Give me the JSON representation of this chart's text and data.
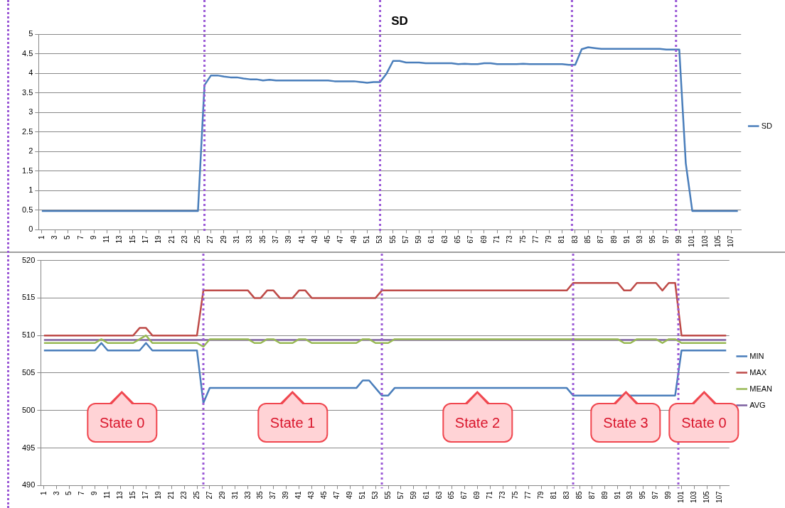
{
  "chart_data": [
    {
      "type": "line",
      "title": "SD",
      "x": [
        1,
        2,
        3,
        4,
        5,
        6,
        7,
        8,
        9,
        10,
        11,
        12,
        13,
        14,
        15,
        16,
        17,
        18,
        19,
        20,
        21,
        22,
        23,
        24,
        25,
        26,
        27,
        28,
        29,
        30,
        31,
        32,
        33,
        34,
        35,
        36,
        37,
        38,
        39,
        40,
        41,
        42,
        43,
        44,
        45,
        46,
        47,
        48,
        49,
        50,
        51,
        52,
        53,
        54,
        55,
        56,
        57,
        58,
        59,
        60,
        61,
        62,
        63,
        64,
        65,
        66,
        67,
        68,
        69,
        70,
        71,
        72,
        73,
        74,
        75,
        76,
        77,
        78,
        79,
        80,
        81,
        82,
        83,
        84,
        85,
        86,
        87,
        88,
        89,
        90,
        91,
        92,
        93,
        94,
        95,
        96,
        97,
        98,
        99,
        100,
        101,
        102,
        103,
        104,
        105,
        106,
        107,
        108
      ],
      "series": [
        {
          "name": "SD",
          "color": "#4a7ebb",
          "values": [
            0.48,
            0.48,
            0.48,
            0.48,
            0.48,
            0.48,
            0.48,
            0.48,
            0.48,
            0.48,
            0.48,
            0.48,
            0.48,
            0.48,
            0.48,
            0.48,
            0.48,
            0.48,
            0.48,
            0.48,
            0.48,
            0.48,
            0.48,
            0.48,
            0.48,
            3.7,
            3.95,
            3.95,
            3.92,
            3.9,
            3.9,
            3.87,
            3.85,
            3.85,
            3.82,
            3.84,
            3.82,
            3.82,
            3.82,
            3.82,
            3.82,
            3.82,
            3.82,
            3.82,
            3.82,
            3.8,
            3.8,
            3.8,
            3.8,
            3.78,
            3.76,
            3.78,
            3.78,
            4.0,
            4.32,
            4.32,
            4.28,
            4.28,
            4.28,
            4.26,
            4.26,
            4.26,
            4.26,
            4.26,
            4.24,
            4.25,
            4.24,
            4.24,
            4.26,
            4.26,
            4.24,
            4.24,
            4.24,
            4.24,
            4.25,
            4.24,
            4.24,
            4.24,
            4.24,
            4.24,
            4.24,
            4.22,
            4.22,
            4.62,
            4.67,
            4.65,
            4.63,
            4.63,
            4.63,
            4.63,
            4.63,
            4.63,
            4.63,
            4.63,
            4.63,
            4.63,
            4.61,
            4.61,
            4.61,
            1.7,
            0.48,
            0.48,
            0.48,
            0.48,
            0.48,
            0.48,
            0.48,
            0.48
          ]
        }
      ],
      "xlim": [
        0.5,
        108.5
      ],
      "xticks": [
        1,
        3,
        5,
        7,
        9,
        11,
        13,
        15,
        17,
        19,
        21,
        23,
        25,
        27,
        29,
        31,
        33,
        35,
        37,
        39,
        41,
        43,
        45,
        47,
        49,
        51,
        53,
        55,
        57,
        59,
        61,
        63,
        65,
        67,
        69,
        71,
        73,
        75,
        77,
        79,
        81,
        83,
        85,
        87,
        89,
        91,
        93,
        95,
        97,
        99,
        101,
        103,
        105,
        107
      ],
      "ylim": [
        0,
        5
      ],
      "yticks": [
        0,
        0.5,
        1,
        1.5,
        2,
        2.5,
        3,
        3.5,
        4,
        4.5,
        5
      ],
      "ref_lines": [
        {
          "axis": "x",
          "value": 26,
          "color": "#9b59d6",
          "line_style": "dotted"
        },
        {
          "axis": "x",
          "value": 53,
          "color": "#9b59d6",
          "line_style": "dotted"
        },
        {
          "axis": "x",
          "value": 82.5,
          "color": "#9b59d6",
          "line_style": "dotted"
        },
        {
          "axis": "x",
          "value": 98.5,
          "color": "#9b59d6",
          "line_style": "dotted"
        }
      ],
      "grid": "y",
      "legend": "right",
      "marker": "none",
      "line_style": "solid"
    },
    {
      "type": "line",
      "x": [
        1,
        2,
        3,
        4,
        5,
        6,
        7,
        8,
        9,
        10,
        11,
        12,
        13,
        14,
        15,
        16,
        17,
        18,
        19,
        20,
        21,
        22,
        23,
        24,
        25,
        26,
        27,
        28,
        29,
        30,
        31,
        32,
        33,
        34,
        35,
        36,
        37,
        38,
        39,
        40,
        41,
        42,
        43,
        44,
        45,
        46,
        47,
        48,
        49,
        50,
        51,
        52,
        53,
        54,
        55,
        56,
        57,
        58,
        59,
        60,
        61,
        62,
        63,
        64,
        65,
        66,
        67,
        68,
        69,
        70,
        71,
        72,
        73,
        74,
        75,
        76,
        77,
        78,
        79,
        80,
        81,
        82,
        83,
        84,
        85,
        86,
        87,
        88,
        89,
        90,
        91,
        92,
        93,
        94,
        95,
        96,
        97,
        98,
        99,
        100,
        101,
        102,
        103,
        104,
        105,
        106,
        107,
        108
      ],
      "series": [
        {
          "name": "MIN",
          "color": "#4a7ebb",
          "values": [
            508,
            508,
            508,
            508,
            508,
            508,
            508,
            508,
            508,
            509,
            508,
            508,
            508,
            508,
            508,
            508,
            509,
            508,
            508,
            508,
            508,
            508,
            508,
            508,
            508,
            501,
            503,
            503,
            503,
            503,
            503,
            503,
            503,
            503,
            503,
            503,
            503,
            503,
            503,
            503,
            503,
            503,
            503,
            503,
            503,
            503,
            503,
            503,
            503,
            503,
            504,
            504,
            503,
            502,
            502,
            503,
            503,
            503,
            503,
            503,
            503,
            503,
            503,
            503,
            503,
            503,
            503,
            503,
            503,
            503,
            503,
            503,
            503,
            503,
            503,
            503,
            503,
            503,
            503,
            503,
            503,
            503,
            503,
            502,
            502,
            502,
            502,
            502,
            502,
            502,
            502,
            502,
            502,
            502,
            502,
            502,
            502,
            502,
            502,
            502,
            508,
            508,
            508,
            508,
            508,
            508,
            508,
            508
          ]
        },
        {
          "name": "MAX",
          "color": "#be4b48",
          "values": [
            510,
            510,
            510,
            510,
            510,
            510,
            510,
            510,
            510,
            510,
            510,
            510,
            510,
            510,
            510,
            511,
            511,
            510,
            510,
            510,
            510,
            510,
            510,
            510,
            510,
            516,
            516,
            516,
            516,
            516,
            516,
            516,
            516,
            515,
            515,
            516,
            516,
            515,
            515,
            515,
            516,
            516,
            515,
            515,
            515,
            515,
            515,
            515,
            515,
            515,
            515,
            515,
            515,
            516,
            516,
            516,
            516,
            516,
            516,
            516,
            516,
            516,
            516,
            516,
            516,
            516,
            516,
            516,
            516,
            516,
            516,
            516,
            516,
            516,
            516,
            516,
            516,
            516,
            516,
            516,
            516,
            516,
            516,
            517,
            517,
            517,
            517,
            517,
            517,
            517,
            517,
            516,
            516,
            517,
            517,
            517,
            517,
            516,
            517,
            517,
            510,
            510,
            510,
            510,
            510,
            510,
            510,
            510
          ]
        },
        {
          "name": "MEAN",
          "color": "#98b954",
          "values": [
            509,
            509,
            509,
            509,
            509,
            509,
            509,
            509,
            509,
            509.5,
            509,
            509,
            509,
            509,
            509,
            509.5,
            510,
            509,
            509,
            509,
            509,
            509,
            509,
            509,
            509,
            508.5,
            509.5,
            509.5,
            509.5,
            509.5,
            509.5,
            509.5,
            509.5,
            509,
            509,
            509.5,
            509.5,
            509,
            509,
            509,
            509.5,
            509.5,
            509,
            509,
            509,
            509,
            509,
            509,
            509,
            509,
            509.5,
            509.5,
            509,
            509,
            509,
            509.5,
            509.5,
            509.5,
            509.5,
            509.5,
            509.5,
            509.5,
            509.5,
            509.5,
            509.5,
            509.5,
            509.5,
            509.5,
            509.5,
            509.5,
            509.5,
            509.5,
            509.5,
            509.5,
            509.5,
            509.5,
            509.5,
            509.5,
            509.5,
            509.5,
            509.5,
            509.5,
            509.5,
            509.5,
            509.5,
            509.5,
            509.5,
            509.5,
            509.5,
            509.5,
            509.5,
            509,
            509,
            509.5,
            509.5,
            509.5,
            509.5,
            509,
            509.5,
            509.5,
            509,
            509,
            509,
            509,
            509,
            509,
            509,
            509
          ]
        },
        {
          "name": "AVG",
          "color": "#7d60a0",
          "values": [
            509.4,
            509.4,
            509.4,
            509.4,
            509.4,
            509.4,
            509.4,
            509.4,
            509.4,
            509.4,
            509.4,
            509.4,
            509.4,
            509.4,
            509.4,
            509.4,
            509.4,
            509.4,
            509.4,
            509.4,
            509.4,
            509.4,
            509.4,
            509.4,
            509.4,
            509.4,
            509.4,
            509.4,
            509.4,
            509.4,
            509.4,
            509.4,
            509.4,
            509.4,
            509.4,
            509.4,
            509.4,
            509.4,
            509.4,
            509.4,
            509.4,
            509.4,
            509.4,
            509.4,
            509.4,
            509.4,
            509.4,
            509.4,
            509.4,
            509.4,
            509.4,
            509.4,
            509.4,
            509.4,
            509.4,
            509.4,
            509.4,
            509.4,
            509.4,
            509.4,
            509.4,
            509.4,
            509.4,
            509.4,
            509.4,
            509.4,
            509.4,
            509.4,
            509.4,
            509.4,
            509.4,
            509.4,
            509.4,
            509.4,
            509.4,
            509.4,
            509.4,
            509.4,
            509.4,
            509.4,
            509.4,
            509.4,
            509.4,
            509.4,
            509.4,
            509.4,
            509.4,
            509.4,
            509.4,
            509.4,
            509.4,
            509.4,
            509.4,
            509.4,
            509.4,
            509.4,
            509.4,
            509.4,
            509.4,
            509.4,
            509.4,
            509.4,
            509.4,
            509.4,
            509.4,
            509.4,
            509.4,
            509.4
          ]
        }
      ],
      "xlim": [
        0.5,
        108.5
      ],
      "xticks": [
        1,
        3,
        5,
        7,
        9,
        11,
        13,
        15,
        17,
        19,
        21,
        23,
        25,
        27,
        29,
        31,
        33,
        35,
        37,
        39,
        41,
        43,
        45,
        47,
        49,
        51,
        53,
        55,
        57,
        59,
        61,
        63,
        65,
        67,
        69,
        71,
        73,
        75,
        77,
        79,
        81,
        83,
        85,
        87,
        89,
        91,
        93,
        95,
        97,
        99,
        101,
        103,
        105,
        107
      ],
      "ylim": [
        490,
        520
      ],
      "yticks": [
        490,
        495,
        500,
        505,
        510,
        515,
        520
      ],
      "ref_lines": [
        {
          "axis": "x",
          "value": 26,
          "color": "#9b59d6",
          "line_style": "dotted"
        },
        {
          "axis": "x",
          "value": 54,
          "color": "#9b59d6",
          "line_style": "dotted"
        },
        {
          "axis": "x",
          "value": 84,
          "color": "#9b59d6",
          "line_style": "dotted"
        },
        {
          "axis": "x",
          "value": 100.5,
          "color": "#9b59d6",
          "line_style": "dotted"
        }
      ],
      "annotations": [
        "State 0",
        "State 1",
        "State 2",
        "State 3",
        "State 0"
      ],
      "grid": "y",
      "legend": "right",
      "marker": "none",
      "line_style": "solid"
    }
  ]
}
